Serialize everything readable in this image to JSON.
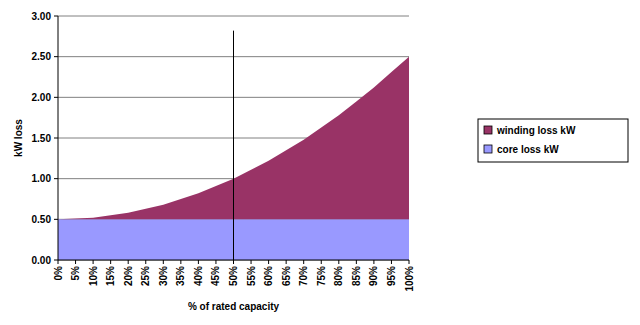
{
  "chart_data": {
    "type": "area",
    "stacked": true,
    "x_label": "% of rated capacity",
    "y_label": "kW loss",
    "categories": [
      "0%",
      "5%",
      "10%",
      "15%",
      "20%",
      "25%",
      "30%",
      "35%",
      "40%",
      "45%",
      "50%",
      "55%",
      "60%",
      "65%",
      "70%",
      "75%",
      "80%",
      "85%",
      "90%",
      "95%",
      "100%"
    ],
    "series": [
      {
        "name": "core loss kW",
        "color": "#9999ff",
        "values": [
          0.5,
          0.5,
          0.5,
          0.5,
          0.5,
          0.5,
          0.5,
          0.5,
          0.5,
          0.5,
          0.5,
          0.5,
          0.5,
          0.5,
          0.5,
          0.5,
          0.5,
          0.5,
          0.5,
          0.5,
          0.5
        ]
      },
      {
        "name": "winding loss kW",
        "color": "#993366",
        "values": [
          0,
          0.01,
          0.02,
          0.05,
          0.08,
          0.13,
          0.18,
          0.25,
          0.32,
          0.41,
          0.5,
          0.61,
          0.72,
          0.85,
          0.98,
          1.13,
          1.28,
          1.45,
          1.62,
          1.81,
          2.0
        ]
      }
    ],
    "ylim": [
      0,
      3
    ],
    "yticks": [
      {
        "value": 0,
        "label": "0.00"
      },
      {
        "value": 0.5,
        "label": "0.50"
      },
      {
        "value": 1,
        "label": "1.00"
      },
      {
        "value": 1.5,
        "label": "1.50"
      },
      {
        "value": 2,
        "label": "2.00"
      },
      {
        "value": 2.5,
        "label": "2.50"
      },
      {
        "value": 3,
        "label": "3.00"
      }
    ],
    "grid": true,
    "legend": "right",
    "vline": {
      "category": "50%",
      "top": 2.82
    }
  }
}
